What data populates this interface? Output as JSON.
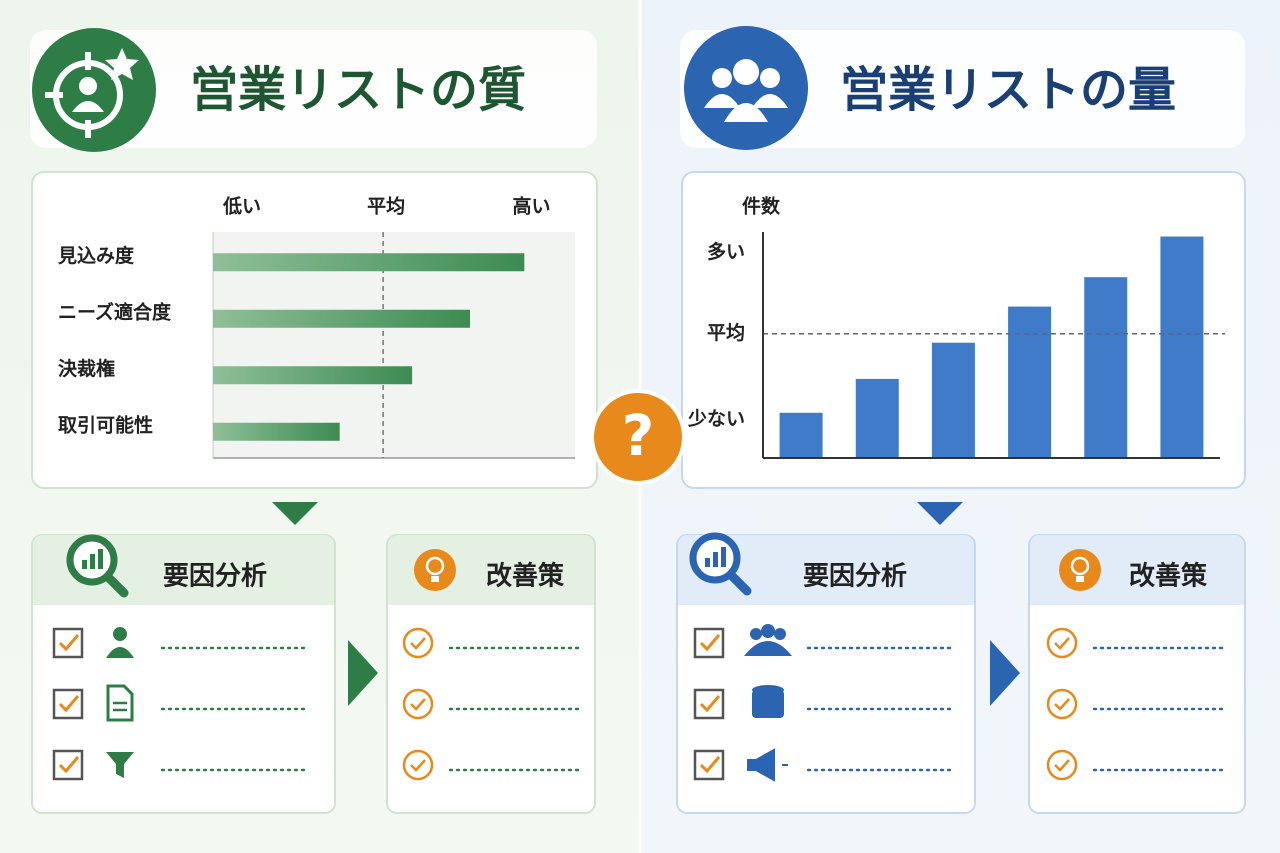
{
  "panels": [
    {
      "title": "営業リストの質",
      "analysis_title": "要因分析",
      "measures_title": "改善策"
    },
    {
      "title": "営業リストの量",
      "analysis_title": "要因分析",
      "measures_title": "改善策"
    }
  ],
  "center_mark": "?",
  "chart_data": [
    {
      "type": "bar",
      "horizontal": true,
      "color": "#3d8b52",
      "categories": [
        "見込み度",
        "ニーズ適合度",
        "決裁権",
        "取引可能性"
      ],
      "values": [
        86,
        71,
        55,
        35
      ],
      "xlim": [
        0,
        100
      ],
      "xticks": [
        {
          "value": 8,
          "label": "低い"
        },
        {
          "value": 88,
          "label": "高い"
        }
      ],
      "reference_line": {
        "value": 47,
        "label": "平均"
      }
    },
    {
      "type": "bar",
      "horizontal": false,
      "color": "#3f7bc8",
      "ylabel": "件数",
      "categories": [
        null,
        null,
        null,
        null,
        null,
        null
      ],
      "values": [
        20,
        35,
        51,
        67,
        80,
        98
      ],
      "ylim": [
        0,
        100
      ],
      "yticks": [
        {
          "value": 17,
          "label": "少ない"
        },
        {
          "value": 91,
          "label": "多い"
        }
      ],
      "reference_line": {
        "value": 55,
        "label": "平均"
      }
    }
  ]
}
